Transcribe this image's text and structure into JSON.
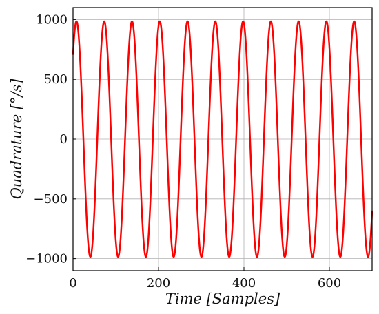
{
  "chart_data": {
    "type": "line",
    "xlabel": "Time [Samples]",
    "ylabel": "Quadrature [°/s]",
    "xlim": [
      0,
      700
    ],
    "ylim": [
      -1100,
      1100
    ],
    "xticks": [
      0,
      200,
      400,
      600
    ],
    "yticks": [
      -1000,
      -500,
      0,
      500,
      1000
    ],
    "xtick_labels": [
      "0",
      "200",
      "400",
      "600"
    ],
    "ytick_labels": [
      "−1000",
      "−500",
      "0",
      "500",
      "1000"
    ],
    "grid": true,
    "series": [
      {
        "color": "#ff0000",
        "function": "sine",
        "amplitude": 985,
        "period_samples": 65,
        "first_peak_at_sample": 8,
        "x_start": 0,
        "x_end": 700
      }
    ]
  }
}
